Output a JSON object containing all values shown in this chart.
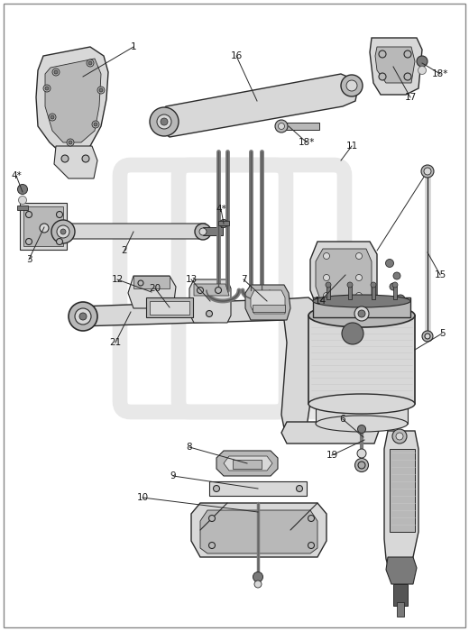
{
  "bg": "#ffffff",
  "lc": "#2a2a2a",
  "pc": "#d8d8d8",
  "pm": "#b8b8b8",
  "pd": "#7a7a7a",
  "wc": "#e8e8e8",
  "tc": "#1a1a1a"
}
